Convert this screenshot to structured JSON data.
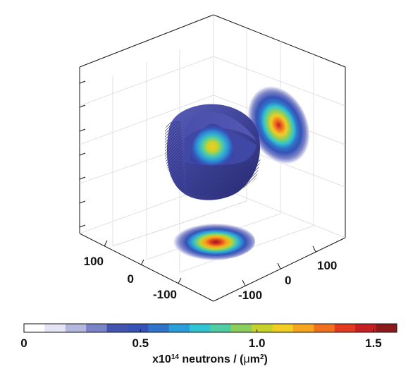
{
  "chart_data": {
    "type": "3d-density-projection",
    "title": "",
    "axes": {
      "x_ticks": [
        "100",
        "0",
        "-100"
      ],
      "y_ticks": [
        "100",
        "0",
        "-100"
      ],
      "z_ticks": []
    },
    "colorbar": {
      "colormap": [
        "#ffffff",
        "#e4e4f2",
        "#b4b7de",
        "#7c84c8",
        "#4452b0",
        "#3552b6",
        "#2f74c9",
        "#2c9fdb",
        "#32c4d2",
        "#52cda2",
        "#8ccf5d",
        "#c6d22b",
        "#f2cd24",
        "#f6a520",
        "#f07220",
        "#e23a21",
        "#c51f24",
        "#8a1a1c"
      ],
      "min": 0,
      "max": 1.6,
      "ticks": [
        {
          "value": 0,
          "label": "0"
        },
        {
          "value": 0.5,
          "label": "0.5"
        },
        {
          "value": 1.0,
          "label": "1.0"
        },
        {
          "value": 1.5,
          "label": "1.5"
        }
      ],
      "unit_prefix": "x10",
      "unit_exponent": "14",
      "unit_middle": " neutrons / (",
      "unit_mu": "μ",
      "unit_m": "m",
      "unit_m_exp": "2",
      "unit_suffix": ")"
    },
    "projections": [
      {
        "plane": "bottom (x-y)",
        "peak": 1.5
      },
      {
        "plane": "right wall (y-z)",
        "peak": 1.5
      },
      {
        "plane": "cut-away sphere interior",
        "peak": 1.15
      }
    ],
    "grid": true
  }
}
